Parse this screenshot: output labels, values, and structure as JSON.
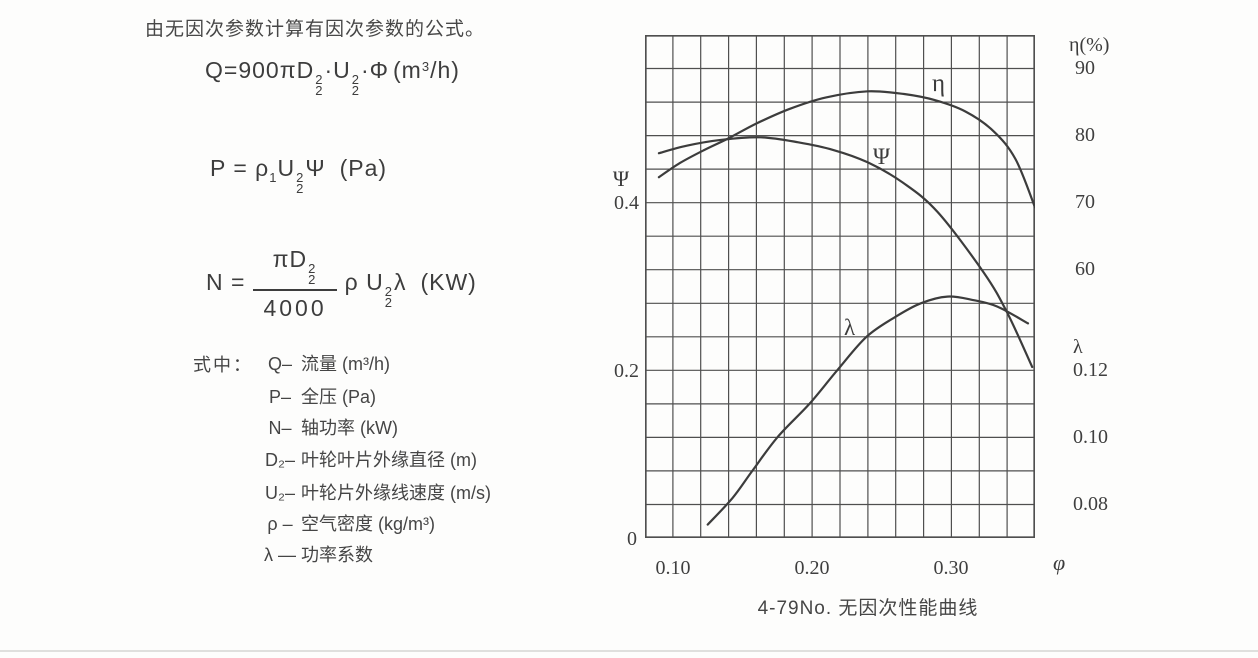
{
  "intro": {
    "text": "由无因次参数计算有因次参数的公式。"
  },
  "formulas": {
    "q": {
      "lhs": "Q",
      "eq": "=",
      "coef": "900",
      "pi": "π",
      "d": "D",
      "d_sup": "2",
      "d_sub": "2",
      "dot1": "·",
      "u": "U",
      "u_sup": "2",
      "u_sub": "2",
      "dot2": "·",
      "phi": "Φ",
      "unit_open": "(m",
      "unit_sup": "3",
      "unit_close": "/h)"
    },
    "p": {
      "lhs": "P",
      "eq": "=",
      "rho": "ρ",
      "rho_sub": "1",
      "u": "U",
      "u_sup": "2",
      "u_sub": "2",
      "psi": "Ψ",
      "unit": "(Pa)"
    },
    "n": {
      "lhs": "N",
      "eq": "=",
      "num_pi": "π",
      "num_d": "D",
      "num_sup": "2",
      "num_sub": "2",
      "den": "4000",
      "rho": "ρ",
      "u": "U",
      "u_sup": "2",
      "u_sub": "2",
      "lambda": "λ",
      "unit": "(KW)"
    }
  },
  "definitions": {
    "heading": "式中：",
    "items": [
      {
        "symbol": "Q–",
        "desc": "流量 (m³/h)"
      },
      {
        "symbol": "P–",
        "desc": "全压 (Pa)"
      },
      {
        "symbol": "N–",
        "desc": "轴功率 (kW)"
      },
      {
        "symbol": "D₂–",
        "desc": "叶轮叶片外缘直径 (m)"
      },
      {
        "symbol": "U₂–",
        "desc": "叶轮片外缘线速度 (m/s)"
      },
      {
        "symbol": "ρ –",
        "desc": "空气密度 (kg/m³)"
      },
      {
        "symbol": "λ —",
        "desc": "功率系数"
      }
    ]
  },
  "chart": {
    "caption": "4-79No. 无因次性能曲线",
    "left_axis": {
      "symbol": "Ψ",
      "tick_04": "0.4",
      "tick_02": "0.2",
      "origin": "0"
    },
    "right_axis": {
      "eta_title": "η(%)",
      "eta_90": "90",
      "eta_80": "80",
      "eta_70": "70",
      "eta_60": "60",
      "lambda_symbol": "λ",
      "l_012": "0.12",
      "l_010": "0.10",
      "l_008": "0.08"
    },
    "x_axis": {
      "t_010": "0.10",
      "t_020": "0.20",
      "t_030": "0.30",
      "symbol": "φ"
    },
    "curve_labels": {
      "eta": "η",
      "psi": "Ψ",
      "lambda": "λ"
    }
  },
  "chart_data": {
    "type": "line",
    "title": "4-79No. 无因次性能曲线",
    "xlabel": "φ",
    "x_ticks": [
      0.1,
      0.2,
      0.3
    ],
    "grid": {
      "cols": 14,
      "rows": 15,
      "on": true
    },
    "axes": {
      "phi": {
        "min": 0.08,
        "max": 0.36
      },
      "psi": {
        "min": 0.0,
        "max": 0.6,
        "ticks": [
          0.2,
          0.4
        ]
      },
      "eta_pct": {
        "min": 20,
        "max": 95,
        "ticks": [
          60,
          70,
          80,
          90
        ]
      },
      "lambda": {
        "min": 0.07,
        "max": 0.22,
        "ticks": [
          0.08,
          0.1,
          0.12
        ]
      }
    },
    "series": [
      {
        "name": "η",
        "axis": "eta_pct",
        "points": [
          [
            0.09,
            73.8
          ],
          [
            0.105,
            75.9
          ],
          [
            0.122,
            77.8
          ],
          [
            0.139,
            79.5
          ],
          [
            0.16,
            81.8
          ],
          [
            0.184,
            84.0
          ],
          [
            0.21,
            85.7
          ],
          [
            0.24,
            86.6
          ],
          [
            0.266,
            86.2
          ],
          [
            0.288,
            85.3
          ],
          [
            0.31,
            83.6
          ],
          [
            0.33,
            80.7
          ],
          [
            0.346,
            76.5
          ],
          [
            0.36,
            69.3
          ]
        ]
      },
      {
        "name": "Ψ",
        "axis": "psi",
        "points": [
          [
            0.09,
            0.459
          ],
          [
            0.11,
            0.468
          ],
          [
            0.135,
            0.475
          ],
          [
            0.163,
            0.478
          ],
          [
            0.19,
            0.472
          ],
          [
            0.215,
            0.463
          ],
          [
            0.24,
            0.448
          ],
          [
            0.265,
            0.424
          ],
          [
            0.29,
            0.389
          ],
          [
            0.323,
            0.317
          ],
          [
            0.34,
            0.269
          ],
          [
            0.358,
            0.204
          ]
        ]
      },
      {
        "name": "λ",
        "axis": "lambda",
        "points": [
          [
            0.125,
            0.074
          ],
          [
            0.143,
            0.082
          ],
          [
            0.157,
            0.09
          ],
          [
            0.175,
            0.1
          ],
          [
            0.198,
            0.11
          ],
          [
            0.218,
            0.12
          ],
          [
            0.239,
            0.13
          ],
          [
            0.26,
            0.136
          ],
          [
            0.278,
            0.14
          ],
          [
            0.297,
            0.142
          ],
          [
            0.315,
            0.141
          ],
          [
            0.333,
            0.139
          ],
          [
            0.355,
            0.134
          ]
        ]
      }
    ]
  },
  "colors": {
    "ink": "#3a3a3a",
    "grid": "#4f4f4f",
    "curve": "#3c3c3c",
    "background": "#fdfdfc"
  }
}
